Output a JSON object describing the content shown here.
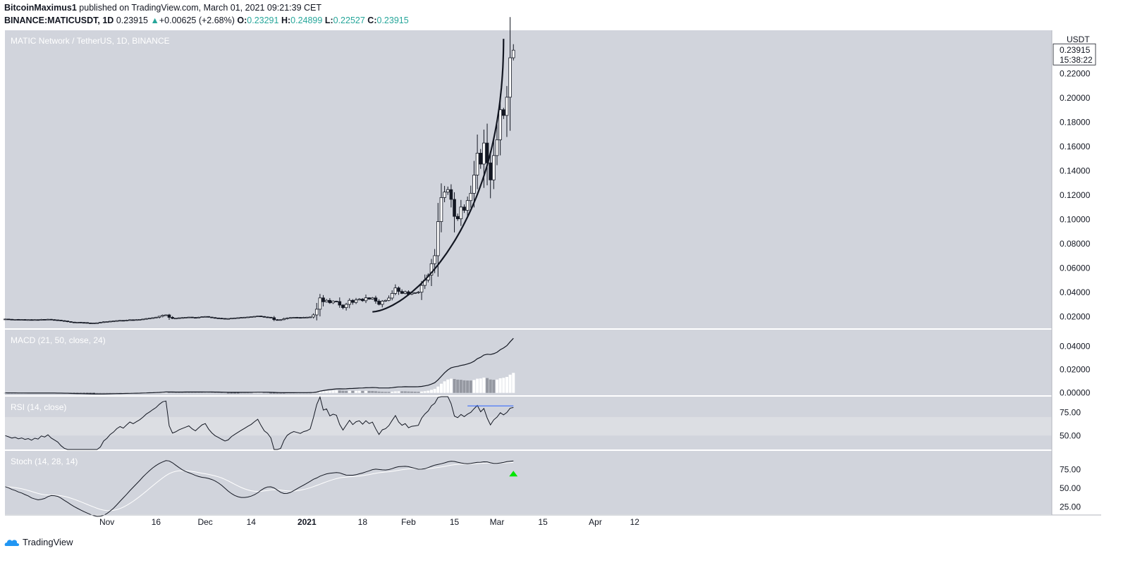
{
  "header": {
    "author": "BitcoinMaximus1",
    "published_text": "published on TradingView.com, March 01, 2021 09:21:39 CET",
    "symbol_line": "BINANCE:MATICUSDT, 1D",
    "last": "0.23915",
    "change": "+0.00625 (+2.68%)",
    "o_label": "O:",
    "o": "0.23291",
    "h_label": "H:",
    "h": "0.24899",
    "l_label": "L:",
    "l": "0.22527",
    "c_label": "C:",
    "c": "0.23915"
  },
  "footer": {
    "brand": "TradingView"
  },
  "colors": {
    "panel_bg": "#d1d4dc",
    "rsi_band": "#dcdee3",
    "up": "#ffffff",
    "down": "#131722",
    "accent": "#26a69a",
    "arrow": "#00e600",
    "blue_line": "#2962ff"
  },
  "chart_data": [
    {
      "type": "candlestick",
      "title": "MATIC Network / TetherUS, 1D, BINANCE",
      "currency": "USDT",
      "ylim": [
        0.0105,
        0.2555
      ],
      "y_ticks": [
        "0.02000",
        "0.04000",
        "0.06000",
        "0.08000",
        "0.10000",
        "0.12000",
        "0.14000",
        "0.16000",
        "0.18000",
        "0.20000",
        "0.22000"
      ],
      "y_tick_values": [
        0.02,
        0.04,
        0.06,
        0.08,
        0.1,
        0.12,
        0.14,
        0.16,
        0.18,
        0.2,
        0.22
      ],
      "last_price": "0.23915",
      "countdown": "15:38:22",
      "x_ticks": [
        "Nov",
        "16",
        "Dec",
        "14",
        "2021",
        "18",
        "Feb",
        "15",
        "Mar",
        "15",
        "Apr",
        "12"
      ],
      "x_tick_days": [
        31,
        46,
        61,
        75,
        92,
        109,
        123,
        137,
        150,
        164,
        180,
        192
      ],
      "start_date": "2020-10-01",
      "closes": [
        0.0181,
        0.0179,
        0.0177,
        0.0178,
        0.0176,
        0.0177,
        0.0175,
        0.0176,
        0.0174,
        0.0176,
        0.0175,
        0.0178,
        0.0177,
        0.0179,
        0.0176,
        0.0174,
        0.0172,
        0.0168,
        0.0165,
        0.016,
        0.0156,
        0.0154,
        0.0155,
        0.0153,
        0.0152,
        0.0149,
        0.0147,
        0.0148,
        0.015,
        0.0154,
        0.0158,
        0.016,
        0.0163,
        0.0165,
        0.0168,
        0.017,
        0.0169,
        0.0172,
        0.0175,
        0.0174,
        0.0176,
        0.0178,
        0.0181,
        0.0185,
        0.0188,
        0.0192,
        0.0196,
        0.0204,
        0.0212,
        0.0215,
        0.0195,
        0.0186,
        0.0188,
        0.0191,
        0.0193,
        0.0195,
        0.0197,
        0.0194,
        0.0192,
        0.0196,
        0.02,
        0.0202,
        0.0197,
        0.0193,
        0.019,
        0.0188,
        0.0186,
        0.0184,
        0.0185,
        0.0188,
        0.019,
        0.0192,
        0.0194,
        0.0196,
        0.0198,
        0.02,
        0.0203,
        0.0206,
        0.0202,
        0.0198,
        0.0196,
        0.0192,
        0.0176,
        0.0172,
        0.0176,
        0.0184,
        0.019,
        0.0193,
        0.0195,
        0.0194,
        0.0193,
        0.0195,
        0.0196,
        0.0198,
        0.0215,
        0.0262,
        0.0355,
        0.0323,
        0.0335,
        0.0315,
        0.0328,
        0.0325,
        0.0296,
        0.0275,
        0.0302,
        0.0335,
        0.0318,
        0.0338,
        0.0345,
        0.0332,
        0.0356,
        0.0345,
        0.0355,
        0.0328,
        0.0302,
        0.0328,
        0.0335,
        0.0354,
        0.0392,
        0.0437,
        0.0408,
        0.0392,
        0.0405,
        0.0385,
        0.0395,
        0.0398,
        0.0402,
        0.0458,
        0.0502,
        0.0542,
        0.0636,
        0.0702,
        0.0982,
        0.118,
        0.1225,
        0.1245,
        0.1165,
        0.1025,
        0.1005,
        0.1102,
        0.1075,
        0.1155,
        0.1215,
        0.1365,
        0.1545,
        0.1455,
        0.1628,
        0.1465,
        0.1325,
        0.1525,
        0.1655,
        0.1902,
        0.1855,
        0.2005,
        0.2329,
        0.23915
      ],
      "arc": {
        "start_date": "2021-01-21",
        "end_date": "2021-03-02",
        "start_price": 0.024,
        "end_price": 0.2485
      }
    },
    {
      "type": "line",
      "title": "MACD (21, 50, close, 24)",
      "ylim": [
        -0.002,
        0.054
      ],
      "y_ticks": [
        "0.00000",
        "0.02000",
        "0.04000"
      ],
      "y_tick_values": [
        0,
        0.02,
        0.04
      ]
    },
    {
      "type": "line",
      "title": "RSI (14, close)",
      "ylim": [
        35,
        92
      ],
      "band": [
        50,
        70
      ],
      "y_ticks": [
        "50.00",
        "75.00"
      ],
      "y_tick_values": [
        50,
        75
      ]
    },
    {
      "type": "line",
      "title": "Stoch (14, 28, 14)",
      "ylim": [
        15,
        100
      ],
      "y_ticks": [
        "25.00",
        "50.00",
        "75.00"
      ],
      "y_tick_values": [
        25,
        50,
        75
      ]
    }
  ]
}
